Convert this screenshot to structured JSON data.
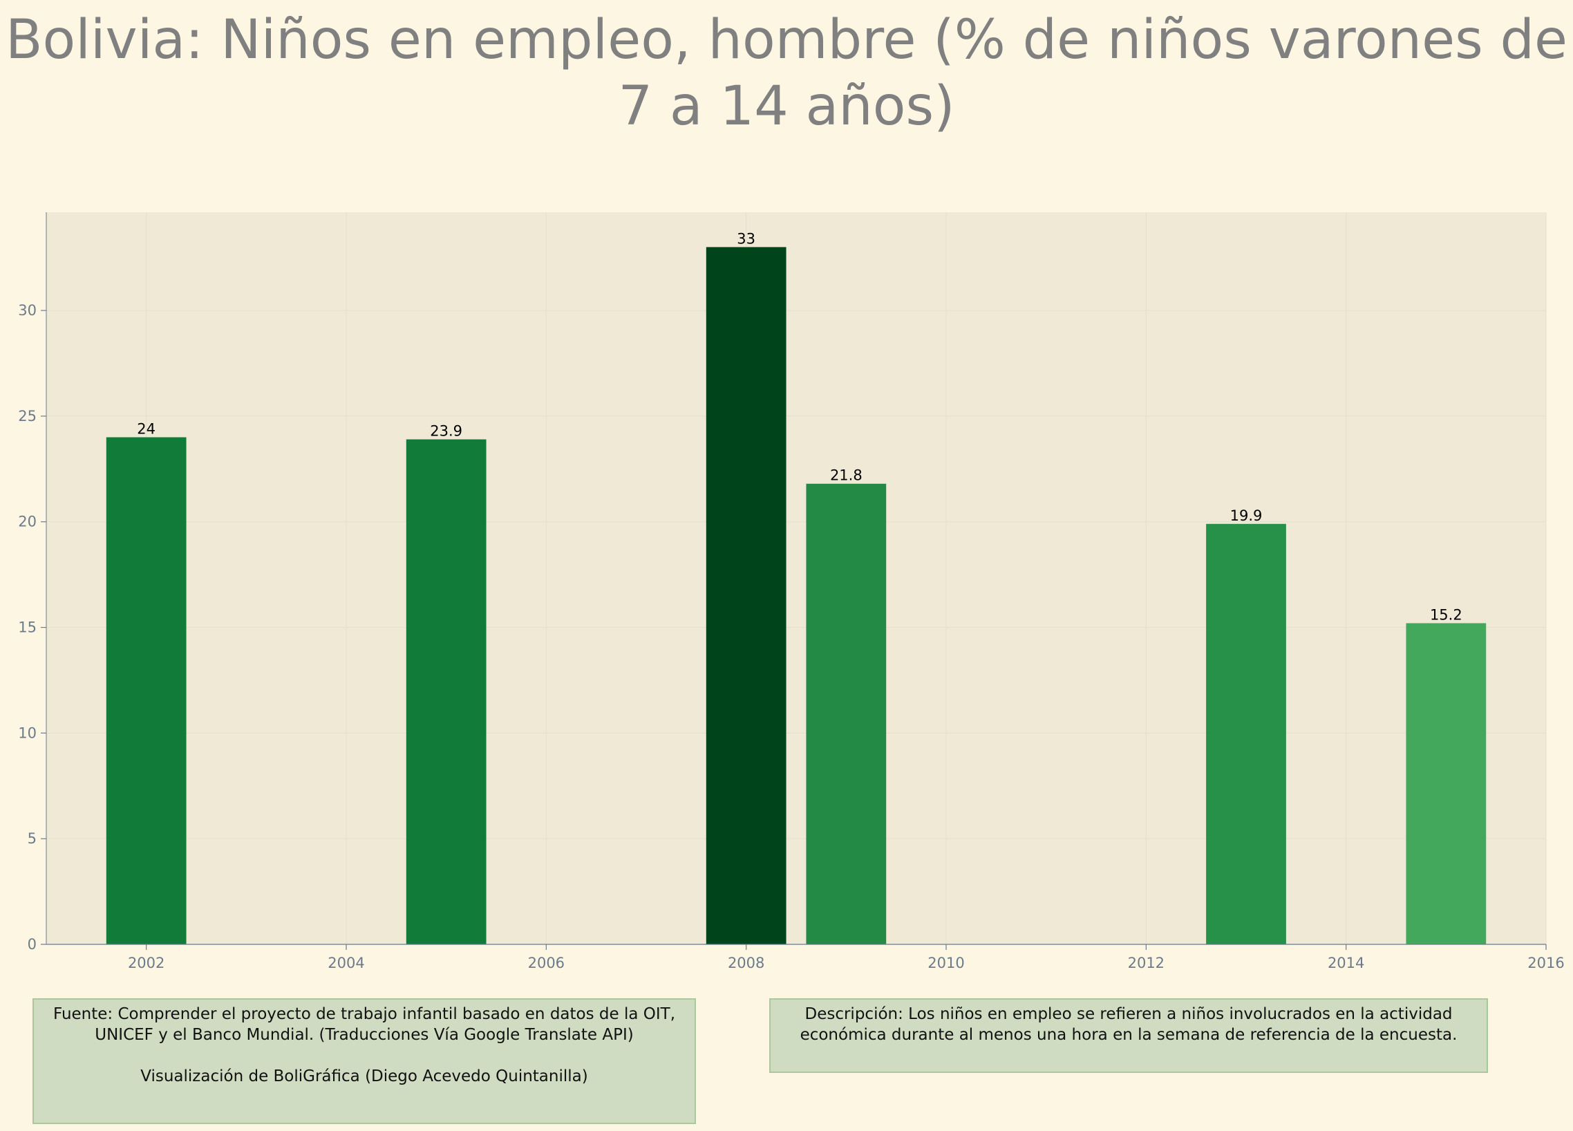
{
  "chart_data": {
    "type": "bar",
    "title": "Bolivia:  Niños en empleo, hombre (% de niños varones de 7 a 14 años)",
    "xlabel": "",
    "ylabel": "",
    "x": [
      2002,
      2005,
      2008,
      2009,
      2013,
      2015
    ],
    "values": [
      24,
      23.9,
      33,
      21.8,
      19.9,
      15.2
    ],
    "data_labels": [
      "24",
      "23.9",
      "33",
      "21.8",
      "19.9",
      "15.2"
    ],
    "bar_colors": [
      "#117b39",
      "#117b39",
      "#00441b",
      "#228a45",
      "#289149",
      "#43a85c"
    ],
    "xlim": [
      2001,
      2016
    ],
    "ylim": [
      0,
      34.65
    ],
    "xticks": [
      2002,
      2004,
      2006,
      2008,
      2010,
      2012,
      2014,
      2016
    ],
    "yticks": [
      0,
      5,
      10,
      15,
      20,
      25,
      30
    ],
    "grid": true,
    "legend": "none"
  },
  "colors": {
    "background": "#fdf6e3",
    "plot_background": "#f0e9d6",
    "title": "#808080",
    "tick_text": "#6b7b8c",
    "note_box": "#cfdcc1"
  },
  "source": {
    "text": "Fuente: Comprender el proyecto de trabajo infantil basado en datos de la OIT, UNICEF y el Banco Mundial. (Traducciones Vía Google Translate API)",
    "credit": "Visualización de BoliGráfica (Diego Acevedo Quintanilla)"
  },
  "description": {
    "text": "Descripción: Los niños en empleo se refieren a niños involucrados en la actividad económica durante al menos una hora en la semana de referencia de la encuesta."
  }
}
